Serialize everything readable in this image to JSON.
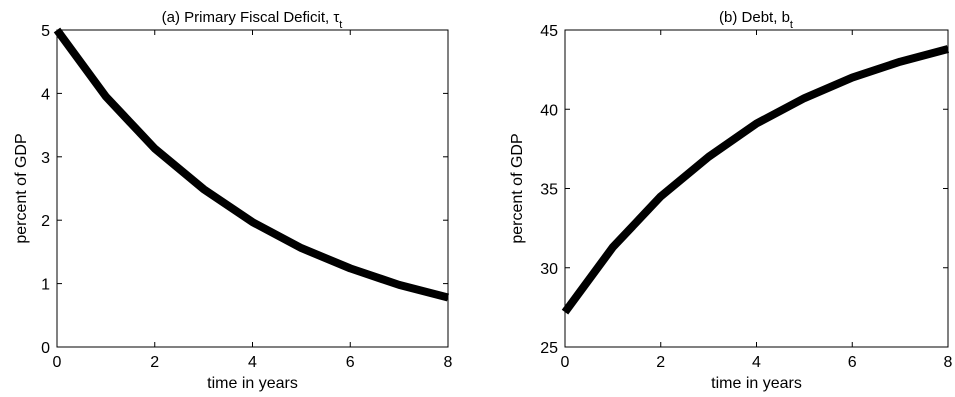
{
  "chart_data": [
    {
      "type": "line",
      "title": "(a) Primary Fiscal Deficit,",
      "title_symbol": "τ",
      "title_subscript": "t",
      "xlabel": "time in years",
      "ylabel": "percent of GDP",
      "xlim": [
        0,
        8
      ],
      "ylim": [
        0,
        5
      ],
      "xticks": [
        0,
        2,
        4,
        6,
        8
      ],
      "yticks": [
        0,
        1,
        2,
        3,
        4,
        5
      ],
      "grid": false,
      "line_color": "#000000",
      "series": [
        {
          "x": [
            0,
            1,
            2,
            3,
            4,
            5,
            6,
            7,
            8
          ],
          "values": [
            5.0,
            3.95,
            3.13,
            2.49,
            1.97,
            1.56,
            1.24,
            0.98,
            0.78
          ]
        }
      ]
    },
    {
      "type": "line",
      "title": "(b) Debt,",
      "title_symbol": "b",
      "title_subscript": "t",
      "xlabel": "time in years",
      "ylabel": "percent of GDP",
      "xlim": [
        0,
        8
      ],
      "ylim": [
        25,
        45
      ],
      "xticks": [
        0,
        2,
        4,
        6,
        8
      ],
      "yticks": [
        25,
        30,
        35,
        40,
        45
      ],
      "grid": false,
      "line_color": "#000000",
      "series": [
        {
          "x": [
            0,
            1,
            2,
            3,
            4,
            5,
            6,
            7,
            8
          ],
          "values": [
            27.2,
            31.3,
            34.5,
            37.0,
            39.1,
            40.7,
            42.0,
            43.0,
            43.8
          ]
        }
      ]
    }
  ]
}
